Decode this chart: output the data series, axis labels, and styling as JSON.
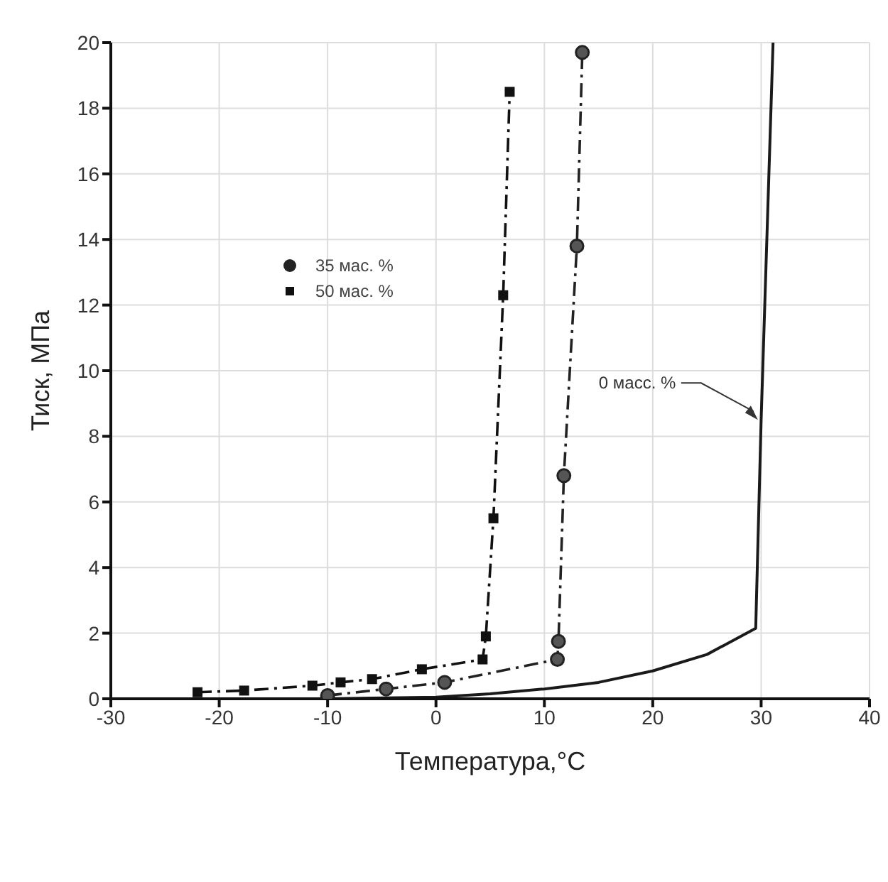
{
  "chart_data": {
    "type": "line",
    "xlabel": "Температура,°C",
    "ylabel": "Тиск, МПа",
    "xlim": [
      -30,
      40
    ],
    "xticks": [
      -30,
      -20,
      -10,
      0,
      10,
      20,
      30,
      40
    ],
    "ylim": [
      0,
      20
    ],
    "yticks": [
      0,
      2,
      4,
      6,
      8,
      10,
      12,
      14,
      16,
      18,
      20
    ],
    "grid": true,
    "legend": "top left",
    "series": [
      {
        "name": "35 мас. %",
        "color": "#222222",
        "marker": "circle",
        "line_style": "dashed",
        "x": [
          -10,
          -4.6,
          0.8,
          11.2,
          11.3,
          11.8,
          13,
          13.5
        ],
        "values": [
          0.1,
          0.3,
          0.5,
          1.2,
          1.75,
          6.8,
          13.8,
          19.7
        ]
      },
      {
        "name": "50 мас. %",
        "color": "#111111",
        "marker": "square",
        "line_style": "dashed",
        "x": [
          -22,
          -17.7,
          -11.4,
          -8.8,
          -5.9,
          -1.3,
          4.3,
          4.6,
          5.3,
          6.2,
          6.8
        ],
        "values": [
          0.2,
          0.25,
          0.4,
          0.5,
          0.6,
          0.9,
          1.2,
          1.9,
          5.5,
          12.3,
          18.5
        ]
      },
      {
        "color": "#1a1a1a",
        "marker": "none",
        "line_style": "solid",
        "x": [
          -10,
          0,
          5,
          10,
          15,
          20,
          25,
          29.5,
          30,
          31.1
        ],
        "values": [
          0,
          0.05,
          0.15,
          0.3,
          0.5,
          0.85,
          1.35,
          2.15,
          8.5,
          20
        ]
      }
    ],
    "annotations": [
      {
        "text": "0 масс. %",
        "x": 29.7,
        "y": 8.5
      }
    ]
  }
}
